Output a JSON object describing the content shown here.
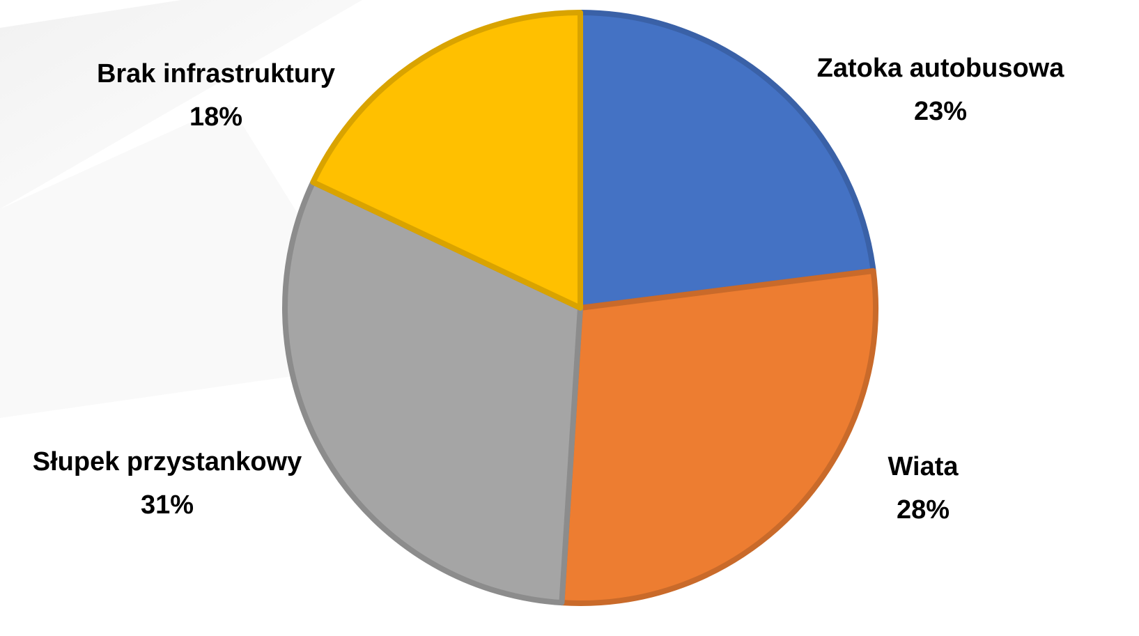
{
  "chart_data": {
    "type": "pie",
    "categories": [
      "Zatoka autobusowa",
      "Wiata",
      "Słupek przystankowy",
      "Brak infrastruktury"
    ],
    "values": [
      23,
      28,
      31,
      18
    ],
    "value_labels": [
      "23%",
      "28%",
      "31%",
      "18%"
    ],
    "colors": [
      "#4472c4",
      "#ed7d31",
      "#a5a5a5",
      "#ffc000"
    ]
  }
}
